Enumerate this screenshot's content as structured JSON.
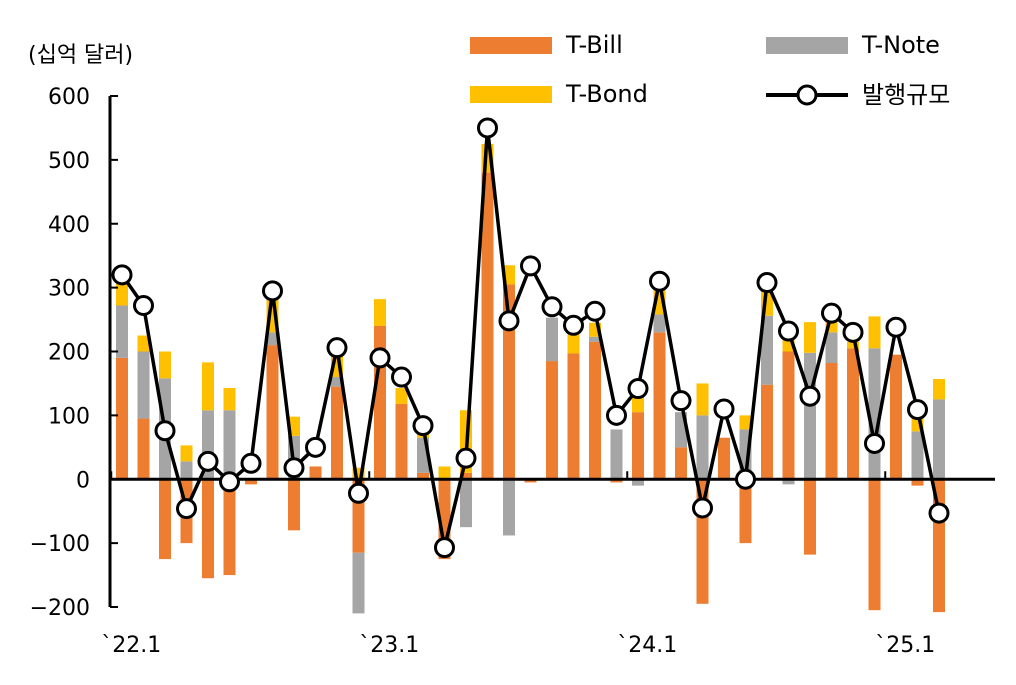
{
  "chart_data": {
    "type": "bar",
    "subtype": "stacked bar with line overlay",
    "unit_label": "(십억 달러)",
    "ylim": [
      -200,
      600
    ],
    "yticks": [
      600,
      500,
      400,
      300,
      200,
      100,
      0,
      -100,
      -200
    ],
    "ytick_labels": [
      "600",
      "500",
      "400",
      "300",
      "200",
      "100",
      "0",
      "−100",
      "−200"
    ],
    "x_tick_labels": [
      {
        "index": 0,
        "label": "`22.1"
      },
      {
        "index": 12,
        "label": "`23.1"
      },
      {
        "index": 24,
        "label": "`24.1"
      },
      {
        "index": 36,
        "label": "`25.1"
      }
    ],
    "months": 40,
    "legend": {
      "placement": "top",
      "entries": [
        {
          "label": "T-Bill",
          "kind": "bar"
        },
        {
          "label": "T-Note",
          "kind": "bar"
        },
        {
          "label": "T-Bond",
          "kind": "bar"
        },
        {
          "label": "발행규모",
          "kind": "line"
        }
      ]
    },
    "colors": {
      "bill": "#ED7D31",
      "note": "#A5A5A5",
      "bond": "#FFC000",
      "line": "#000000"
    },
    "series": [
      {
        "name": "T-Bill",
        "values": [
          190,
          95,
          -125,
          -100,
          -155,
          -150,
          -8,
          210,
          -80,
          20,
          145,
          -115,
          240,
          118,
          10,
          -125,
          10,
          480,
          305,
          -5,
          185,
          197,
          215,
          -5,
          105,
          230,
          50,
          -195,
          65,
          -100,
          148,
          200,
          -118,
          182,
          205,
          -205,
          195,
          -10,
          -208,
          0
        ]
      },
      {
        "name": "T-Note",
        "values": [
          82,
          105,
          158,
          28,
          108,
          108,
          0,
          20,
          68,
          0,
          15,
          -95,
          0,
          0,
          55,
          0,
          -75,
          0,
          -88,
          0,
          68,
          0,
          8,
          78,
          -10,
          28,
          55,
          100,
          0,
          78,
          108,
          -8,
          198,
          48,
          0,
          205,
          0,
          75,
          125,
          0
        ]
      },
      {
        "name": "T-Bond",
        "values": [
          35,
          25,
          42,
          25,
          75,
          35,
          0,
          65,
          30,
          0,
          45,
          18,
          42,
          25,
          15,
          20,
          98,
          45,
          30,
          0,
          0,
          30,
          22,
          0,
          25,
          50,
          0,
          50,
          0,
          22,
          48,
          45,
          48,
          28,
          10,
          50,
          0,
          20,
          32,
          0
        ]
      },
      {
        "name": "발행규모",
        "values": [
          320,
          272,
          76,
          -46,
          28,
          -4,
          25,
          295,
          18,
          50,
          206,
          -22,
          190,
          160,
          84,
          -107,
          33,
          550,
          248,
          334,
          270,
          241,
          263,
          100,
          142,
          310,
          123,
          -45,
          110,
          0,
          308,
          232,
          130,
          260,
          230,
          56,
          238,
          109,
          -53,
          null
        ]
      }
    ]
  }
}
